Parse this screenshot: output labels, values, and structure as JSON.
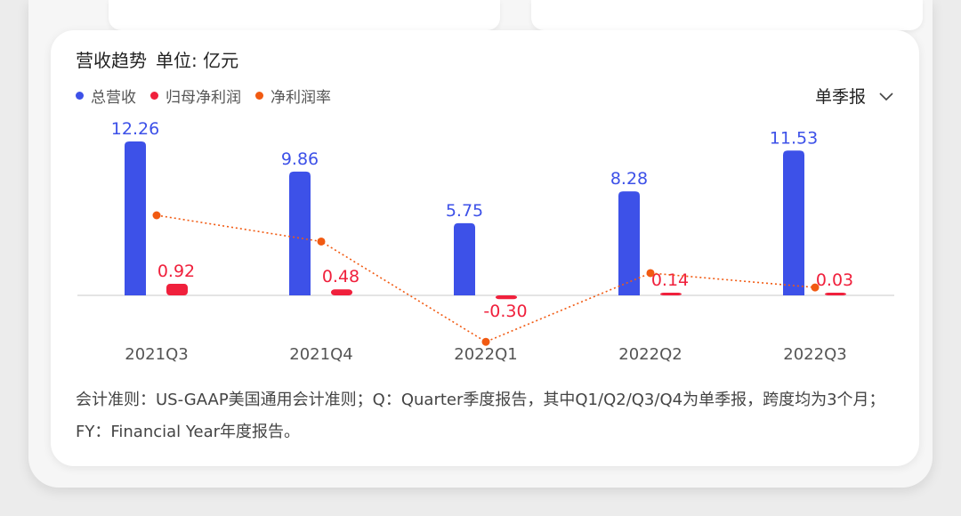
{
  "chart_data": {
    "type": "bar",
    "title": "营收趋势",
    "unit_label": "单位: 亿元",
    "categories": [
      "2021Q3",
      "2021Q4",
      "2022Q1",
      "2022Q2",
      "2022Q3"
    ],
    "series": [
      {
        "name": "总营收",
        "kind": "bar",
        "color": "#3d51e8",
        "values": [
          12.26,
          9.86,
          5.75,
          8.28,
          11.53
        ],
        "labels": [
          "12.26",
          "9.86",
          "5.75",
          "8.28",
          "11.53"
        ]
      },
      {
        "name": "归母净利润",
        "kind": "bar",
        "color": "#f0203c",
        "values": [
          0.92,
          0.48,
          -0.3,
          0.14,
          0.03
        ],
        "labels": [
          "0.92",
          "0.48",
          "-0.30",
          "0.14",
          "0.03"
        ]
      },
      {
        "name": "净利润率",
        "kind": "line",
        "color": "#f15a12",
        "values": [
          7.5,
          4.87,
          -5.2,
          1.7,
          0.26
        ]
      }
    ],
    "legend_position": "top-left"
  },
  "period_selector": {
    "label": "单季报"
  },
  "footnote": "会计准则：US-GAAP美国通用会计准则；Q：Quarter季度报告，其中Q1/Q2/Q3/Q4为单季报，跨度均为3个月；FY：Financial Year年度报告。"
}
